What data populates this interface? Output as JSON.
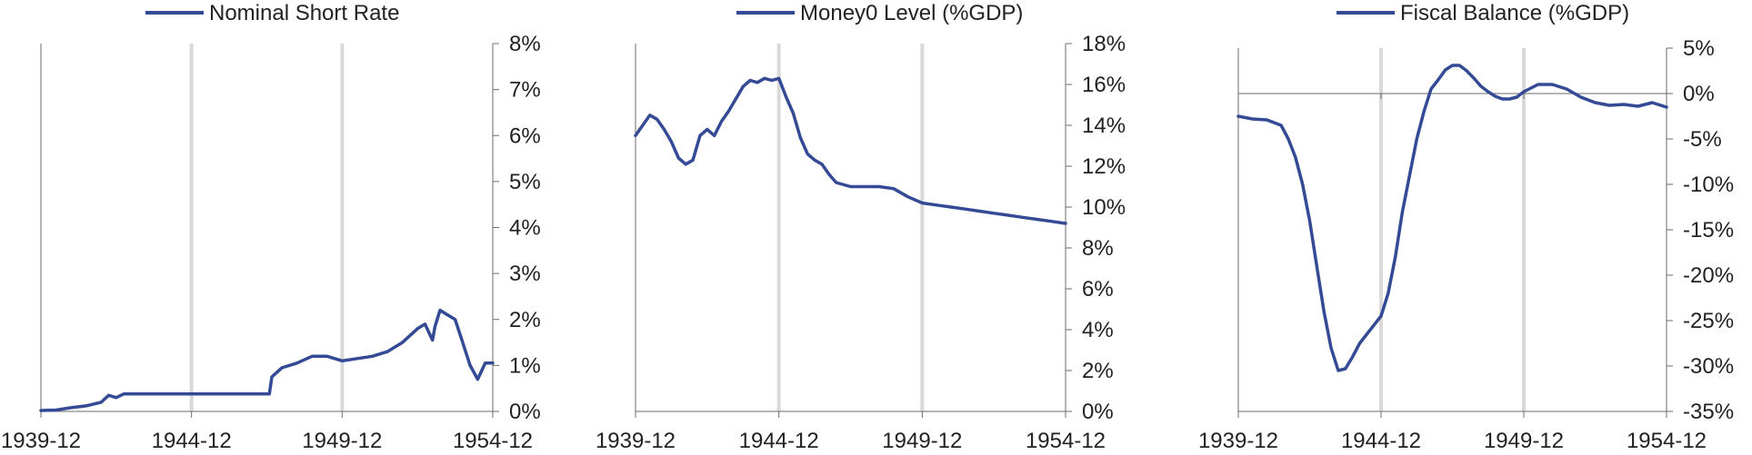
{
  "colors": {
    "series": "#344a95",
    "marker": "#d9d9d9",
    "axis": "#6b6b6b",
    "text": "#222222"
  },
  "chart_data": [
    {
      "type": "line",
      "legend_position": "top-center",
      "series": [
        {
          "name": "Nominal Short Rate",
          "x": [
            "1939-12",
            "1940-06",
            "1940-12",
            "1941-06",
            "1941-12",
            "1942-03",
            "1942-06",
            "1942-09",
            "1943-01",
            "1943-06",
            "1944-06",
            "1944-12",
            "1945-06",
            "1946-06",
            "1947-07",
            "1947-08",
            "1947-12",
            "1948-06",
            "1948-12",
            "1949-06",
            "1949-12",
            "1950-06",
            "1950-12",
            "1951-06",
            "1951-12",
            "1952-06",
            "1952-09",
            "1952-12",
            "1953-01",
            "1953-03",
            "1953-06",
            "1953-09",
            "1953-12",
            "1954-03",
            "1954-06",
            "1954-09",
            "1954-12"
          ],
          "y": [
            0.02,
            0.03,
            0.08,
            0.12,
            0.2,
            0.35,
            0.3,
            0.38,
            0.38,
            0.38,
            0.38,
            0.38,
            0.38,
            0.38,
            0.38,
            0.75,
            0.95,
            1.05,
            1.2,
            1.2,
            1.1,
            1.15,
            1.2,
            1.3,
            1.5,
            1.8,
            1.9,
            1.55,
            1.85,
            2.2,
            2.1,
            2.0,
            1.5,
            1.0,
            0.7,
            1.05,
            1.05
          ]
        }
      ],
      "xlim": [
        "1939-12",
        "1954-12"
      ],
      "ylim": [
        0,
        8
      ],
      "y_ticks": [
        "0%",
        "1%",
        "2%",
        "3%",
        "4%",
        "5%",
        "6%",
        "7%",
        "8%"
      ],
      "x_ticks": [
        "1939-12",
        "1944-12",
        "1949-12",
        "1954-12"
      ],
      "markers": [
        "1944-12",
        "1949-12"
      ]
    },
    {
      "type": "line",
      "legend_position": "top-center",
      "series": [
        {
          "name": "Money0 Level (%GDP)",
          "x": [
            "1939-12",
            "1940-03",
            "1940-06",
            "1940-09",
            "1940-12",
            "1941-03",
            "1941-06",
            "1941-09",
            "1941-12",
            "1942-03",
            "1942-06",
            "1942-09",
            "1942-12",
            "1943-03",
            "1943-06",
            "1943-09",
            "1943-12",
            "1944-03",
            "1944-06",
            "1944-09",
            "1944-12",
            "1945-03",
            "1945-06",
            "1945-09",
            "1945-12",
            "1946-03",
            "1946-06",
            "1946-09",
            "1946-12",
            "1947-06",
            "1947-12",
            "1948-06",
            "1948-12",
            "1949-06",
            "1949-12",
            "1950-06",
            "1950-12",
            "1951-06",
            "1951-12",
            "1952-06",
            "1952-12",
            "1953-06",
            "1953-12",
            "1954-06",
            "1954-12"
          ],
          "y": [
            13.5,
            14.0,
            14.5,
            14.3,
            13.8,
            13.2,
            12.4,
            12.1,
            12.3,
            13.5,
            13.8,
            13.5,
            14.2,
            14.7,
            15.3,
            15.9,
            16.2,
            16.1,
            16.3,
            16.2,
            16.3,
            15.4,
            14.6,
            13.4,
            12.6,
            12.3,
            12.1,
            11.6,
            11.2,
            11.0,
            11.0,
            11.0,
            10.9,
            10.5,
            10.2,
            10.1,
            10.0,
            9.9,
            9.8,
            9.7,
            9.6,
            9.5,
            9.4,
            9.3,
            9.2
          ]
        }
      ],
      "xlim": [
        "1939-12",
        "1954-12"
      ],
      "ylim": [
        0,
        18
      ],
      "y_ticks": [
        "0%",
        "2%",
        "4%",
        "6%",
        "8%",
        "10%",
        "12%",
        "14%",
        "16%",
        "18%"
      ],
      "x_ticks": [
        "1939-12",
        "1944-12",
        "1949-12",
        "1954-12"
      ],
      "markers": [
        "1944-12",
        "1949-12"
      ]
    },
    {
      "type": "line",
      "legend_position": "top-center",
      "series": [
        {
          "name": "Fiscal Balance (%GDP)",
          "x": [
            "1939-12",
            "1940-06",
            "1940-12",
            "1941-06",
            "1941-09",
            "1941-12",
            "1942-03",
            "1942-06",
            "1942-09",
            "1942-12",
            "1943-03",
            "1943-06",
            "1943-09",
            "1943-12",
            "1944-03",
            "1944-06",
            "1944-09",
            "1944-12",
            "1945-03",
            "1945-06",
            "1945-09",
            "1945-12",
            "1946-03",
            "1946-06",
            "1946-09",
            "1946-12",
            "1947-03",
            "1947-06",
            "1947-09",
            "1947-12",
            "1948-03",
            "1948-06",
            "1948-09",
            "1948-12",
            "1949-03",
            "1949-06",
            "1949-09",
            "1949-12",
            "1950-06",
            "1950-12",
            "1951-06",
            "1951-12",
            "1952-06",
            "1952-12",
            "1953-06",
            "1953-12",
            "1954-06",
            "1954-12"
          ],
          "y": [
            -2.5,
            -2.8,
            -2.9,
            -3.5,
            -5,
            -7,
            -10,
            -14,
            -19,
            -24,
            -28,
            -30.5,
            -30.3,
            -29,
            -27.5,
            -26.5,
            -25.5,
            -24.5,
            -22,
            -18,
            -13,
            -9,
            -5,
            -2,
            0.5,
            1.5,
            2.6,
            3.1,
            3.1,
            2.5,
            1.7,
            0.8,
            0.2,
            -0.3,
            -0.6,
            -0.6,
            -0.4,
            0.2,
            1.0,
            1.0,
            0.5,
            -0.4,
            -1.0,
            -1.3,
            -1.2,
            -1.4,
            -1.0,
            -1.5
          ]
        }
      ],
      "xlim": [
        "1939-12",
        "1954-12"
      ],
      "ylim": [
        -35,
        5
      ],
      "y_ticks": [
        "-35%",
        "-30%",
        "-25%",
        "-20%",
        "-15%",
        "-10%",
        "-5%",
        "0%",
        "5%"
      ],
      "x_ticks": [
        "1939-12",
        "1944-12",
        "1949-12",
        "1954-12"
      ],
      "markers": [
        "1944-12",
        "1949-12"
      ]
    }
  ]
}
